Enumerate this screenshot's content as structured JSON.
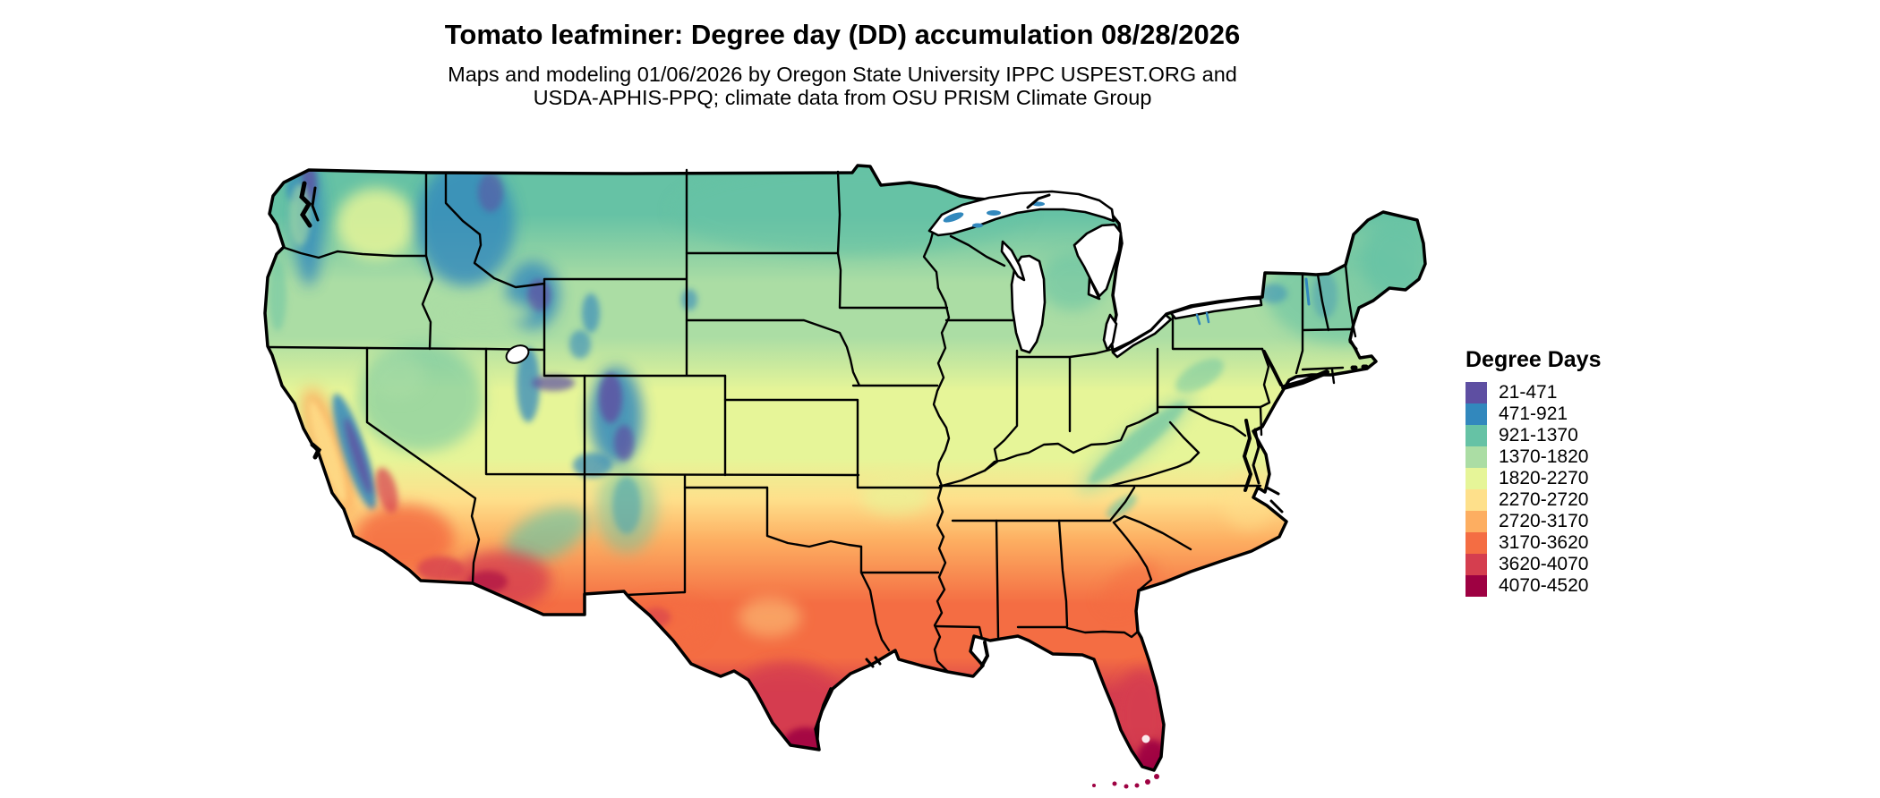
{
  "header": {
    "title": "Tomato leafminer: Degree day (DD) accumulation 08/28/2026",
    "subtitle_line1": "Maps and modeling 01/06/2026 by Oregon State University IPPC USPEST.ORG and",
    "subtitle_line2": "USDA-APHIS-PPQ; climate data from OSU PRISM Climate Group"
  },
  "legend": {
    "title": "Degree Days",
    "items": [
      {
        "label": "21-471",
        "color": "#5e4fa2"
      },
      {
        "label": "471-921",
        "color": "#3288bd"
      },
      {
        "label": "921-1370",
        "color": "#66c2a5"
      },
      {
        "label": "1370-1820",
        "color": "#abdda4"
      },
      {
        "label": "1820-2270",
        "color": "#e6f598"
      },
      {
        "label": "2270-2720",
        "color": "#fee08b"
      },
      {
        "label": "2720-3170",
        "color": "#fdae61"
      },
      {
        "label": "3170-3620",
        "color": "#f46d43"
      },
      {
        "label": "3620-4070",
        "color": "#d53e4f"
      },
      {
        "label": "4070-4520",
        "color": "#9e0142"
      }
    ]
  },
  "map": {
    "type": "choropleth-raster",
    "region": "contiguous United States",
    "border_color": "#000000",
    "water_color": "#ffffff"
  }
}
